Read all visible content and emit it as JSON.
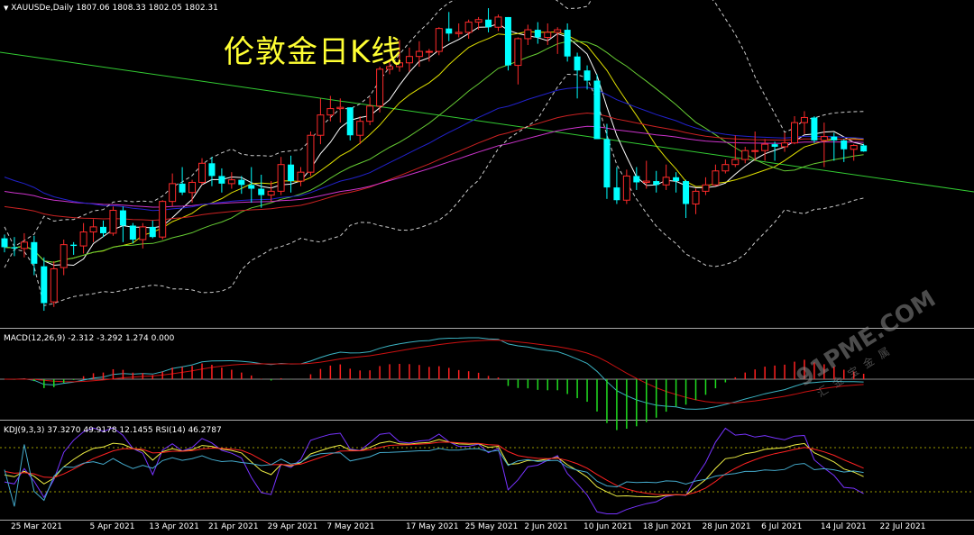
{
  "header": {
    "symbol_line": "XAUUSDe,Daily  1807.06 1808.33 1802.05 1802.31",
    "title": "伦敦金日K线"
  },
  "macd": {
    "label": "MACD(12,26,9) -2.312 -3.292 1.274 0.000"
  },
  "kdj": {
    "label": "KDJ(9,3,3) 37.3270 49.9178 12.1455  RSI(14) 46.2787"
  },
  "watermark": {
    "main": "91PME.COM",
    "sub": "汇金宝金属"
  },
  "colors": {
    "bull_candle": "#ff2a2a",
    "bear_candle": "#00ffff",
    "ma_white": "#ffffff",
    "ma_yellow": "#e0e000",
    "ma_green": "#66cc33",
    "ma_red": "#cc2222",
    "ma_purple": "#cc33cc",
    "ma_blue": "#2222cc",
    "bollinger": "#cccccc",
    "trendline": "#33cc33",
    "macd_pos": "#ff2020",
    "macd_neg": "#20dd20",
    "macd_line": "#3bb3c3",
    "signal_line": "#cc1111",
    "k_line": "#eeee44",
    "d_line": "#ff2222",
    "j_line": "#7733ff",
    "rsi_line": "#44aacc"
  },
  "chart_data": {
    "type": "candlestick",
    "symbol": "XAUUSDe",
    "timeframe": "Daily",
    "last_ohlc": {
      "open": 1807.06,
      "high": 1808.33,
      "low": 1802.05,
      "close": 1802.31
    },
    "x_tick_labels": [
      "25 Mar 2021",
      "5 Apr 2021",
      "13 Apr 2021",
      "21 Apr 2021",
      "29 Apr 2021",
      "7 May 2021",
      "17 May 2021",
      "25 May 2021",
      "2 Jun 2021",
      "10 Jun 2021",
      "18 Jun 2021",
      "28 Jun 2021",
      "6 Jul 2021",
      "14 Jul 2021",
      "22 Jul 2021"
    ],
    "price_range": [
      1665,
      1920
    ],
    "candles": [
      {
        "date": "2021-03-24",
        "o": 1734,
        "h": 1737,
        "l": 1723,
        "c": 1727
      },
      {
        "date": "2021-03-25",
        "o": 1727,
        "h": 1735,
        "l": 1720,
        "c": 1726
      },
      {
        "date": "2021-03-26",
        "o": 1726,
        "h": 1738,
        "l": 1719,
        "c": 1731
      },
      {
        "date": "2021-03-29",
        "o": 1731,
        "h": 1736,
        "l": 1705,
        "c": 1714
      },
      {
        "date": "2021-03-30",
        "o": 1712,
        "h": 1719,
        "l": 1677,
        "c": 1683
      },
      {
        "date": "2021-03-31",
        "o": 1684,
        "h": 1716,
        "l": 1680,
        "c": 1710
      },
      {
        "date": "2021-04-01",
        "o": 1711,
        "h": 1733,
        "l": 1705,
        "c": 1729
      },
      {
        "date": "2021-04-02",
        "o": 1729,
        "h": 1731,
        "l": 1721,
        "c": 1728
      },
      {
        "date": "2021-04-05",
        "o": 1728,
        "h": 1746,
        "l": 1722,
        "c": 1739
      },
      {
        "date": "2021-04-06",
        "o": 1739,
        "h": 1749,
        "l": 1731,
        "c": 1743
      },
      {
        "date": "2021-04-07",
        "o": 1743,
        "h": 1748,
        "l": 1735,
        "c": 1738
      },
      {
        "date": "2021-04-08",
        "o": 1738,
        "h": 1759,
        "l": 1736,
        "c": 1756
      },
      {
        "date": "2021-04-09",
        "o": 1756,
        "h": 1759,
        "l": 1731,
        "c": 1744
      },
      {
        "date": "2021-04-12",
        "o": 1744,
        "h": 1746,
        "l": 1730,
        "c": 1733
      },
      {
        "date": "2021-04-13",
        "o": 1733,
        "h": 1746,
        "l": 1726,
        "c": 1743
      },
      {
        "date": "2021-04-14",
        "o": 1743,
        "h": 1748,
        "l": 1734,
        "c": 1735
      },
      {
        "date": "2021-04-15",
        "o": 1735,
        "h": 1764,
        "l": 1733,
        "c": 1763
      },
      {
        "date": "2021-04-16",
        "o": 1763,
        "h": 1785,
        "l": 1759,
        "c": 1777
      },
      {
        "date": "2021-04-19",
        "o": 1777,
        "h": 1790,
        "l": 1768,
        "c": 1770
      },
      {
        "date": "2021-04-20",
        "o": 1770,
        "h": 1780,
        "l": 1762,
        "c": 1778
      },
      {
        "date": "2021-04-21",
        "o": 1778,
        "h": 1797,
        "l": 1776,
        "c": 1793
      },
      {
        "date": "2021-04-22",
        "o": 1793,
        "h": 1798,
        "l": 1775,
        "c": 1783
      },
      {
        "date": "2021-04-23",
        "o": 1783,
        "h": 1789,
        "l": 1770,
        "c": 1777
      },
      {
        "date": "2021-04-26",
        "o": 1777,
        "h": 1786,
        "l": 1773,
        "c": 1780
      },
      {
        "date": "2021-04-27",
        "o": 1780,
        "h": 1783,
        "l": 1769,
        "c": 1776
      },
      {
        "date": "2021-04-28",
        "o": 1776,
        "h": 1790,
        "l": 1762,
        "c": 1773
      },
      {
        "date": "2021-04-29",
        "o": 1773,
        "h": 1784,
        "l": 1758,
        "c": 1768
      },
      {
        "date": "2021-04-30",
        "o": 1768,
        "h": 1779,
        "l": 1763,
        "c": 1771
      },
      {
        "date": "2021-05-03",
        "o": 1771,
        "h": 1798,
        "l": 1768,
        "c": 1792
      },
      {
        "date": "2021-05-04",
        "o": 1792,
        "h": 1799,
        "l": 1770,
        "c": 1779
      },
      {
        "date": "2021-05-05",
        "o": 1779,
        "h": 1790,
        "l": 1775,
        "c": 1786
      },
      {
        "date": "2021-05-06",
        "o": 1786,
        "h": 1818,
        "l": 1783,
        "c": 1815
      },
      {
        "date": "2021-05-07",
        "o": 1815,
        "h": 1844,
        "l": 1808,
        "c": 1831
      },
      {
        "date": "2021-05-10",
        "o": 1831,
        "h": 1846,
        "l": 1826,
        "c": 1836
      },
      {
        "date": "2021-05-11",
        "o": 1836,
        "h": 1844,
        "l": 1825,
        "c": 1837
      },
      {
        "date": "2021-05-12",
        "o": 1837,
        "h": 1837,
        "l": 1811,
        "c": 1815
      },
      {
        "date": "2021-05-13",
        "o": 1815,
        "h": 1830,
        "l": 1808,
        "c": 1826
      },
      {
        "date": "2021-05-14",
        "o": 1826,
        "h": 1845,
        "l": 1823,
        "c": 1838
      },
      {
        "date": "2021-05-17",
        "o": 1838,
        "h": 1869,
        "l": 1833,
        "c": 1867
      },
      {
        "date": "2021-05-18",
        "o": 1867,
        "h": 1875,
        "l": 1863,
        "c": 1869
      },
      {
        "date": "2021-05-19",
        "o": 1869,
        "h": 1890,
        "l": 1865,
        "c": 1872
      },
      {
        "date": "2021-05-20",
        "o": 1872,
        "h": 1884,
        "l": 1865,
        "c": 1877
      },
      {
        "date": "2021-05-21",
        "o": 1877,
        "h": 1889,
        "l": 1869,
        "c": 1881
      },
      {
        "date": "2021-05-24",
        "o": 1881,
        "h": 1883,
        "l": 1873,
        "c": 1881
      },
      {
        "date": "2021-05-25",
        "o": 1881,
        "h": 1900,
        "l": 1878,
        "c": 1899
      },
      {
        "date": "2021-05-26",
        "o": 1899,
        "h": 1912,
        "l": 1889,
        "c": 1895
      },
      {
        "date": "2021-05-27",
        "o": 1895,
        "h": 1903,
        "l": 1892,
        "c": 1896
      },
      {
        "date": "2021-05-28",
        "o": 1896,
        "h": 1906,
        "l": 1891,
        "c": 1904
      },
      {
        "date": "2021-05-31",
        "o": 1904,
        "h": 1908,
        "l": 1898,
        "c": 1906
      },
      {
        "date": "2021-06-01",
        "o": 1906,
        "h": 1915,
        "l": 1896,
        "c": 1900
      },
      {
        "date": "2021-06-02",
        "o": 1900,
        "h": 1910,
        "l": 1897,
        "c": 1908
      },
      {
        "date": "2021-06-03",
        "o": 1908,
        "h": 1908,
        "l": 1866,
        "c": 1870
      },
      {
        "date": "2021-06-04",
        "o": 1870,
        "h": 1892,
        "l": 1855,
        "c": 1891
      },
      {
        "date": "2021-06-07",
        "o": 1891,
        "h": 1902,
        "l": 1886,
        "c": 1898
      },
      {
        "date": "2021-06-08",
        "o": 1898,
        "h": 1904,
        "l": 1887,
        "c": 1892
      },
      {
        "date": "2021-06-09",
        "o": 1892,
        "h": 1903,
        "l": 1886,
        "c": 1896
      },
      {
        "date": "2021-06-10",
        "o": 1896,
        "h": 1900,
        "l": 1879,
        "c": 1898
      },
      {
        "date": "2021-06-11",
        "o": 1898,
        "h": 1903,
        "l": 1873,
        "c": 1877
      },
      {
        "date": "2021-06-14",
        "o": 1877,
        "h": 1880,
        "l": 1844,
        "c": 1866
      },
      {
        "date": "2021-06-15",
        "o": 1866,
        "h": 1870,
        "l": 1851,
        "c": 1858
      },
      {
        "date": "2021-06-16",
        "o": 1858,
        "h": 1863,
        "l": 1812,
        "c": 1812
      },
      {
        "date": "2021-06-17",
        "o": 1812,
        "h": 1824,
        "l": 1765,
        "c": 1774
      },
      {
        "date": "2021-06-18",
        "o": 1774,
        "h": 1790,
        "l": 1761,
        "c": 1764
      },
      {
        "date": "2021-06-21",
        "o": 1764,
        "h": 1788,
        "l": 1761,
        "c": 1783
      },
      {
        "date": "2021-06-22",
        "o": 1783,
        "h": 1790,
        "l": 1772,
        "c": 1778
      },
      {
        "date": "2021-06-23",
        "o": 1778,
        "h": 1795,
        "l": 1773,
        "c": 1779
      },
      {
        "date": "2021-06-24",
        "o": 1779,
        "h": 1787,
        "l": 1770,
        "c": 1776
      },
      {
        "date": "2021-06-25",
        "o": 1776,
        "h": 1792,
        "l": 1772,
        "c": 1782
      },
      {
        "date": "2021-06-28",
        "o": 1782,
        "h": 1786,
        "l": 1770,
        "c": 1779
      },
      {
        "date": "2021-06-29",
        "o": 1779,
        "h": 1780,
        "l": 1750,
        "c": 1761
      },
      {
        "date": "2021-06-30",
        "o": 1761,
        "h": 1773,
        "l": 1753,
        "c": 1771
      },
      {
        "date": "2021-07-01",
        "o": 1771,
        "h": 1782,
        "l": 1768,
        "c": 1776
      },
      {
        "date": "2021-07-02",
        "o": 1776,
        "h": 1792,
        "l": 1775,
        "c": 1787
      },
      {
        "date": "2021-07-05",
        "o": 1787,
        "h": 1796,
        "l": 1785,
        "c": 1792
      },
      {
        "date": "2021-07-06",
        "o": 1792,
        "h": 1815,
        "l": 1790,
        "c": 1796
      },
      {
        "date": "2021-07-07",
        "o": 1796,
        "h": 1806,
        "l": 1793,
        "c": 1803
      },
      {
        "date": "2021-07-08",
        "o": 1803,
        "h": 1818,
        "l": 1795,
        "c": 1803
      },
      {
        "date": "2021-07-09",
        "o": 1803,
        "h": 1812,
        "l": 1795,
        "c": 1808
      },
      {
        "date": "2021-07-12",
        "o": 1808,
        "h": 1810,
        "l": 1795,
        "c": 1806
      },
      {
        "date": "2021-07-13",
        "o": 1806,
        "h": 1817,
        "l": 1802,
        "c": 1809
      },
      {
        "date": "2021-07-14",
        "o": 1809,
        "h": 1830,
        "l": 1808,
        "c": 1825
      },
      {
        "date": "2021-07-15",
        "o": 1825,
        "h": 1834,
        "l": 1816,
        "c": 1829
      },
      {
        "date": "2021-07-16",
        "o": 1829,
        "h": 1830,
        "l": 1809,
        "c": 1811
      },
      {
        "date": "2021-07-19",
        "o": 1811,
        "h": 1825,
        "l": 1790,
        "c": 1814
      },
      {
        "date": "2021-07-20",
        "o": 1814,
        "h": 1817,
        "l": 1795,
        "c": 1811
      },
      {
        "date": "2021-07-21",
        "o": 1811,
        "h": 1812,
        "l": 1794,
        "c": 1804
      },
      {
        "date": "2021-07-22",
        "o": 1804,
        "h": 1808,
        "l": 1795,
        "c": 1807
      },
      {
        "date": "2021-07-23",
        "o": 1807.06,
        "h": 1808.33,
        "l": 1802.05,
        "c": 1802.31
      }
    ],
    "indicators": {
      "macd": {
        "params": [
          12,
          26,
          9
        ],
        "values": [
          -2.312,
          -3.292,
          1.274,
          0.0
        ]
      },
      "kdj": {
        "params": [
          9,
          3,
          3
        ],
        "values": [
          37.327,
          49.9178,
          12.1455
        ]
      },
      "rsi": {
        "period": 14,
        "value": 46.2787
      }
    }
  }
}
